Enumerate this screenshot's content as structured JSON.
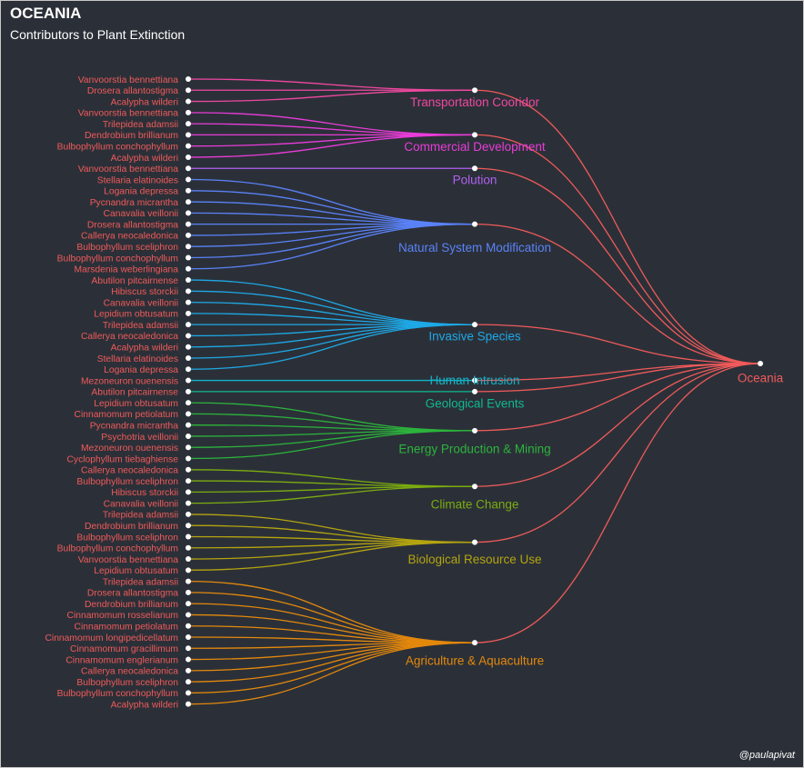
{
  "title": "OCEANIA",
  "subtitle": "Contributors to Plant Extinction",
  "credit": "@paulapivat",
  "root": {
    "label": "Oceania",
    "color": "#f05a5a"
  },
  "link_color": "#f05a5a",
  "node_color": "#ffffff",
  "categories": [
    {
      "label": "Transportation Cooridor",
      "color": "#f048a0",
      "species": [
        "Vanvoorstia bennettiana",
        "Drosera allantostigma",
        "Acalypha wilderi"
      ]
    },
    {
      "label": "Commercial Development",
      "color": "#e83cd8",
      "species": [
        "Vanvoorstia bennettiana",
        "Trilepidea adamsii",
        "Dendrobium brillianum",
        "Bulbophyllum conchophyllum",
        "Acalypha wilderi"
      ]
    },
    {
      "label": "Polution",
      "color": "#b060f0",
      "species": [
        "Vanvoorstia bennettiana"
      ]
    },
    {
      "label": "Natural System Modification",
      "color": "#5a82f8",
      "species": [
        "Stellaria elatinoides",
        "Logania depressa",
        "Pycnandra micrantha",
        "Canavalia veillonii",
        "Drosera allantostigma",
        "Callerya neocaledonica",
        "Bulbophyllum sceliphron",
        "Bulbophyllum conchophyllum",
        "Marsdenia weberlingiana"
      ]
    },
    {
      "label": "Invasive Species",
      "color": "#1ea8e6",
      "species": [
        "Abutilon pitcairnense",
        "Hibiscus storckii",
        "Canavalia veillonii",
        "Lepidium obtusatum",
        "Trilepidea adamsii",
        "Callerya neocaledonica",
        "Acalypha wilderi",
        "Stellaria elatinoides",
        "Logania depressa"
      ]
    },
    {
      "label": "Human Intrusion",
      "color": "#14b4c8",
      "species": [
        "Mezoneuron ouenensis"
      ]
    },
    {
      "label": "Geological Events",
      "color": "#10b890",
      "species": [
        "Abutilon pitcairnense"
      ]
    },
    {
      "label": "Energy Production & Mining",
      "color": "#2cb43c",
      "species": [
        "Lepidium obtusatum",
        "Cinnamomum petiolatum",
        "Pycnandra micrantha",
        "Psychotria veillonii",
        "Mezoneuron ouenensis",
        "Cyclophyllum tiebaghiense"
      ]
    },
    {
      "label": "Climate Change",
      "color": "#7cac10",
      "species": [
        "Callerya neocaledonica",
        "Bulbophyllum sceliphron",
        "Hibiscus storckii",
        "Canavalia veillonii"
      ]
    },
    {
      "label": "Biological Resource Use",
      "color": "#b4a410",
      "species": [
        "Trilepidea adamsii",
        "Dendrobium brillianum",
        "Bulbophyllum sceliphron",
        "Bulbophyllum conchophyllum",
        "Vanvoorstia bennettiana",
        "Lepidium obtusatum"
      ]
    },
    {
      "label": "Agriculture & Aquaculture",
      "color": "#e4880c",
      "species": [
        "Trilepidea adamsii",
        "Drosera allantostigma",
        "Dendrobium brillianum",
        "Cinnamomum rosselianum",
        "Cinnamomum petiolatum",
        "Cinnamomum longipedicellatum",
        "Cinnamomum gracillimum",
        "Cinnamomum englerianum",
        "Callerya neocaledonica",
        "Bulbophyllum sceliphron",
        "Bulbophyllum conchophyllum",
        "Acalypha wilderi"
      ]
    }
  ]
}
